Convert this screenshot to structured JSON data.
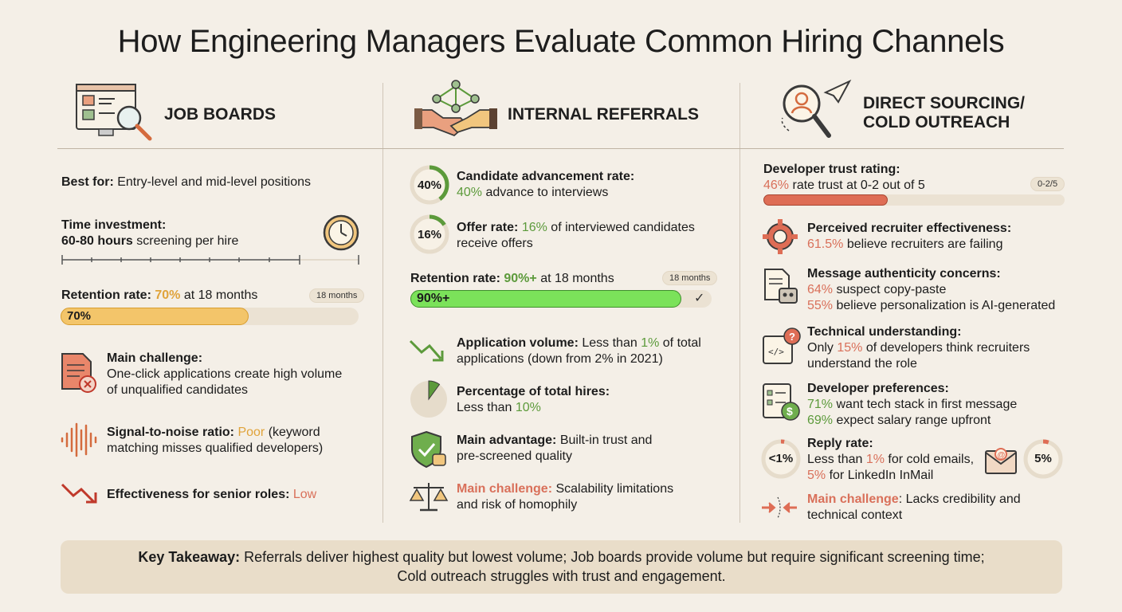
{
  "title": "How Engineering Managers Evaluate Common Hiring Channels",
  "colors": {
    "orange": "#e0a33a",
    "green": "#5c9a3b",
    "red": "#d9705a",
    "bg": "#f4efe7",
    "panel": "#e9ddc9"
  },
  "job_boards": {
    "heading": "JOB BOARDS",
    "best_for_label": "Best for:",
    "best_for_value": "Entry-level and mid-level positions",
    "time_label": "Time investment:",
    "time_hours": "60-80 hours",
    "time_rest": "screening per hire",
    "retention_label": "Retention rate:",
    "retention_value": "70%",
    "retention_rest": "at 18 months",
    "retention_tag": "18 months",
    "retention_bar_text": "70%",
    "retention_fraction": 0.7,
    "challenge_label": "Main challenge:",
    "challenge_text_1": "One-click applications create high volume",
    "challenge_text_2": "of unqualified candidates",
    "snr_label": "Signal-to-noise ratio:",
    "snr_value": "Poor",
    "snr_rest_1": "(keyword",
    "snr_rest_2": "matching misses qualified developers)",
    "senior_label": "Effectiveness for senior roles:",
    "senior_value": "Low"
  },
  "referrals": {
    "heading": "INTERNAL REFERRALS",
    "advancement_ring": "40%",
    "advancement_fraction": 0.4,
    "advancement_label": "Candidate advancement rate:",
    "advancement_value": "40%",
    "advancement_rest": "advance to interviews",
    "offer_ring": "16%",
    "offer_fraction": 0.16,
    "offer_label": "Offer rate:",
    "offer_value": "16%",
    "offer_rest_1": "of interviewed candidates",
    "offer_rest_2": "receive offers",
    "retention_label": "Retention rate:",
    "retention_value": "90%+",
    "retention_rest": "at 18 months",
    "retention_tag": "18 months",
    "retention_bar_text": "90%+",
    "retention_fraction": 0.9,
    "volume_label": "Application volume:",
    "volume_rest_1": "Less than",
    "volume_value": "1%",
    "volume_rest_2": "of total",
    "volume_rest_3": "applications (down from 2% in 2021)",
    "hires_label": "Percentage of total hires:",
    "hires_rest": "Less than",
    "hires_value": "10%",
    "hires_fraction": 0.1,
    "advantage_label": "Main advantage:",
    "advantage_text_1": "Built-in trust and",
    "advantage_text_2": "pre-screened quality",
    "challenge_label": "Main challenge:",
    "challenge_text_1": "Scalability limitations",
    "challenge_text_2": "and risk of homophily"
  },
  "outreach": {
    "heading_1": "DIRECT SOURCING/",
    "heading_2": "COLD OUTREACH",
    "trust_label": "Developer trust rating:",
    "trust_value": "46%",
    "trust_rest": "rate trust at 0-2 out of 5",
    "trust_tag": "0-2/5",
    "trust_fraction": 0.46,
    "recruiter_label": "Perceived recruiter effectiveness:",
    "recruiter_value": "61.5%",
    "recruiter_rest": "believe recruiters are failing",
    "auth_label": "Message authenticity concerns:",
    "auth_value_1": "64%",
    "auth_rest_1": "suspect copy-paste",
    "auth_value_2": "55%",
    "auth_rest_2": "believe personalization is AI-generated",
    "tech_label": "Technical understanding:",
    "tech_rest_1": "Only",
    "tech_value": "15%",
    "tech_rest_2": "of developers think recruiters",
    "tech_rest_3": "understand the role",
    "pref_label": "Developer preferences:",
    "pref_value_1": "71%",
    "pref_rest_1": "want tech stack in first message",
    "pref_value_2": "69%",
    "pref_rest_2": "expect salary range upfront",
    "reply_label": "Reply rate:",
    "reply_rest_1": "Less than",
    "reply_value_1": "1%",
    "reply_rest_2": "for cold emails,",
    "reply_value_2": "5%",
    "reply_rest_3": "for LinkedIn InMail",
    "reply_ring_1": "<1%",
    "reply_ring_2": "5%",
    "reply_fraction_1": 0.01,
    "reply_fraction_2": 0.05,
    "challenge_label": "Main challenge",
    "challenge_rest_1": ": Lacks credibility and",
    "challenge_rest_2": "technical context"
  },
  "takeaway": {
    "label": "Key Takeaway:",
    "text_1": "Referrals deliver highest quality but lowest volume; Job boards provide volume but require significant screening time;",
    "text_2": "Cold outreach struggles with trust and engagement."
  }
}
